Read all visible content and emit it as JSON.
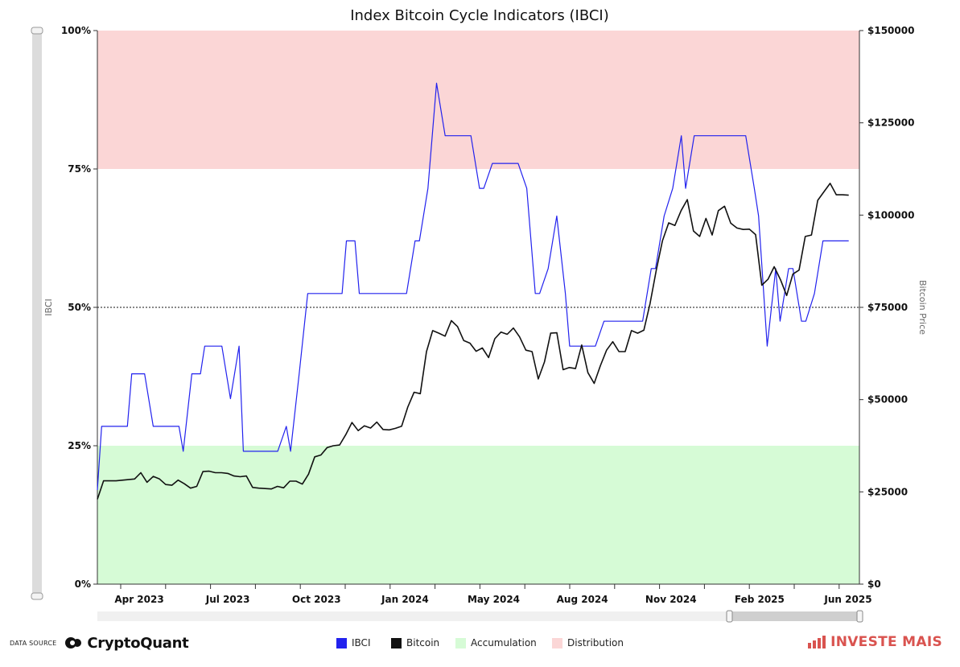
{
  "chart_data": {
    "type": "line",
    "title": "Index Bitcoin Cycle Indicators (IBCI)",
    "y_left_label": "IBCI",
    "y_right_label": "Bitcoin Price",
    "y_left_ticks": [
      "0%",
      "25%",
      "50%",
      "75%",
      "100%"
    ],
    "y_right_ticks": [
      "$0",
      "$25000",
      "$50000",
      "$75000",
      "$100000",
      "$125000",
      "$150000"
    ],
    "y_left_range": [
      0,
      100
    ],
    "y_right_range": [
      0,
      150000
    ],
    "x_ticks": [
      "Apr 2023",
      "Jul 2023",
      "Oct 2023",
      "Jan 2024",
      "May 2024",
      "Aug 2024",
      "Nov 2024",
      "Feb 2025",
      "Jun 2025"
    ],
    "zones": [
      {
        "name": "Accumulation",
        "from": 0,
        "to": 25,
        "color": "#d6fbd6"
      },
      {
        "name": "Distribution",
        "from": 75,
        "to": 100,
        "color": "#fbd6d6"
      }
    ],
    "reference_line": 50,
    "series": [
      {
        "name": "IBCI",
        "color": "#2222ee",
        "axis": "left",
        "points": [
          [
            0,
            17
          ],
          [
            1,
            28.5
          ],
          [
            7,
            28.5
          ],
          [
            8,
            38
          ],
          [
            11,
            38
          ],
          [
            13,
            28.5
          ],
          [
            19,
            28.5
          ],
          [
            20,
            24
          ],
          [
            22,
            38
          ],
          [
            24,
            38
          ],
          [
            25,
            43
          ],
          [
            29,
            43
          ],
          [
            31,
            33.5
          ],
          [
            33,
            43
          ],
          [
            34,
            24
          ],
          [
            42,
            24
          ],
          [
            44,
            28.5
          ],
          [
            45,
            24
          ],
          [
            47,
            38
          ],
          [
            49,
            52.5
          ],
          [
            57,
            52.5
          ],
          [
            58,
            62
          ],
          [
            60,
            62
          ],
          [
            61,
            52.5
          ],
          [
            72,
            52.5
          ],
          [
            74,
            62
          ],
          [
            75,
            62
          ],
          [
            77,
            71.5
          ],
          [
            79,
            90.5
          ],
          [
            81,
            81
          ],
          [
            87,
            81
          ],
          [
            89,
            71.5
          ],
          [
            90,
            71.5
          ],
          [
            92,
            76
          ],
          [
            98,
            76
          ],
          [
            100,
            71.5
          ],
          [
            102,
            52.5
          ],
          [
            103,
            52.5
          ],
          [
            105,
            57
          ],
          [
            107,
            66.5
          ],
          [
            109,
            52.5
          ],
          [
            110,
            43
          ],
          [
            116,
            43
          ],
          [
            118,
            47.5
          ],
          [
            127,
            47.5
          ],
          [
            129,
            57
          ],
          [
            130,
            57
          ],
          [
            132,
            66.5
          ],
          [
            134,
            71.5
          ],
          [
            136,
            81
          ],
          [
            137,
            71.5
          ],
          [
            139,
            81
          ],
          [
            151,
            81
          ],
          [
            153,
            71.5
          ],
          [
            154,
            66.5
          ],
          [
            156,
            43
          ],
          [
            158,
            57
          ],
          [
            159,
            47.5
          ],
          [
            161,
            57
          ],
          [
            162,
            57
          ],
          [
            164,
            47.5
          ],
          [
            165,
            47.5
          ],
          [
            167,
            52.5
          ],
          [
            169,
            62
          ],
          [
            175,
            62
          ]
        ]
      },
      {
        "name": "Bitcoin",
        "color": "#111111",
        "axis": "right",
        "points": [
          [
            0,
            23000
          ],
          [
            1,
            28000
          ],
          [
            3,
            28000
          ],
          [
            6,
            28500
          ],
          [
            7,
            30200
          ],
          [
            8,
            27600
          ],
          [
            9,
            29200
          ],
          [
            10,
            28500
          ],
          [
            11,
            27000
          ],
          [
            12,
            26800
          ],
          [
            13,
            28200
          ],
          [
            14,
            27200
          ],
          [
            15,
            26000
          ],
          [
            16,
            26500
          ],
          [
            17,
            30500
          ],
          [
            18,
            30600
          ],
          [
            19,
            30200
          ],
          [
            20,
            30200
          ],
          [
            21,
            30000
          ],
          [
            22,
            29300
          ],
          [
            23,
            29100
          ],
          [
            24,
            29300
          ],
          [
            25,
            26200
          ],
          [
            26,
            26000
          ],
          [
            27,
            25900
          ],
          [
            28,
            25800
          ],
          [
            29,
            26500
          ],
          [
            30,
            26100
          ],
          [
            31,
            27900
          ],
          [
            32,
            27900
          ],
          [
            33,
            27100
          ],
          [
            34,
            29800
          ],
          [
            35,
            34500
          ],
          [
            36,
            35000
          ],
          [
            37,
            37000
          ],
          [
            38,
            37500
          ],
          [
            39,
            37700
          ],
          [
            40,
            40500
          ],
          [
            41,
            43800
          ],
          [
            42,
            41600
          ],
          [
            43,
            42900
          ],
          [
            44,
            42300
          ],
          [
            45,
            43900
          ],
          [
            46,
            41900
          ],
          [
            47,
            41800
          ],
          [
            48,
            42200
          ],
          [
            49,
            42800
          ],
          [
            50,
            48000
          ],
          [
            51,
            52000
          ],
          [
            52,
            51600
          ],
          [
            53,
            63000
          ],
          [
            54,
            68700
          ],
          [
            55,
            68000
          ],
          [
            56,
            67200
          ],
          [
            57,
            71400
          ],
          [
            58,
            69800
          ],
          [
            59,
            66000
          ],
          [
            60,
            65300
          ],
          [
            61,
            63100
          ],
          [
            62,
            64000
          ],
          [
            63,
            61400
          ],
          [
            64,
            66500
          ],
          [
            65,
            68300
          ],
          [
            66,
            67700
          ],
          [
            67,
            69400
          ],
          [
            68,
            67000
          ],
          [
            69,
            63400
          ],
          [
            70,
            63000
          ],
          [
            71,
            55600
          ],
          [
            72,
            60200
          ],
          [
            73,
            68000
          ],
          [
            74,
            68100
          ],
          [
            75,
            58100
          ],
          [
            76,
            58700
          ],
          [
            77,
            58400
          ],
          [
            78,
            64800
          ],
          [
            79,
            57300
          ],
          [
            80,
            54400
          ],
          [
            81,
            59200
          ],
          [
            82,
            63400
          ],
          [
            83,
            65700
          ],
          [
            84,
            63000
          ],
          [
            85,
            63000
          ],
          [
            86,
            68700
          ],
          [
            87,
            68000
          ],
          [
            88,
            68800
          ],
          [
            89,
            76000
          ],
          [
            90,
            85000
          ],
          [
            91,
            93000
          ],
          [
            92,
            97900
          ],
          [
            93,
            97200
          ],
          [
            94,
            101200
          ],
          [
            95,
            104200
          ],
          [
            96,
            95700
          ],
          [
            97,
            94200
          ],
          [
            98,
            99100
          ],
          [
            99,
            94600
          ],
          [
            100,
            101200
          ],
          [
            101,
            102400
          ],
          [
            102,
            97800
          ],
          [
            103,
            96500
          ],
          [
            104,
            96100
          ],
          [
            105,
            96200
          ],
          [
            106,
            94700
          ],
          [
            107,
            81000
          ],
          [
            108,
            82600
          ],
          [
            109,
            86000
          ],
          [
            110,
            82500
          ],
          [
            111,
            78200
          ],
          [
            112,
            84000
          ],
          [
            113,
            85100
          ],
          [
            114,
            94200
          ],
          [
            115,
            94600
          ],
          [
            116,
            104000
          ],
          [
            117,
            106300
          ],
          [
            118,
            108600
          ],
          [
            119,
            105500
          ],
          [
            120,
            105500
          ],
          [
            121,
            105400
          ]
        ]
      }
    ],
    "legend": [
      "IBCI",
      "Bitcoin",
      "Accumulation",
      "Distribution"
    ],
    "legend_placement": "bottom",
    "grid": false
  },
  "footer": {
    "data_source_label": "DATA SOURCE",
    "data_source_name": "CryptoQuant",
    "brand": "INVESTE MAIS"
  },
  "legend_items": [
    {
      "label": "IBCI",
      "color": "#2222ee"
    },
    {
      "label": "Bitcoin",
      "color": "#111111"
    },
    {
      "label": "Accumulation",
      "color": "#d6fbd6"
    },
    {
      "label": "Distribution",
      "color": "#fbd6d6"
    }
  ]
}
